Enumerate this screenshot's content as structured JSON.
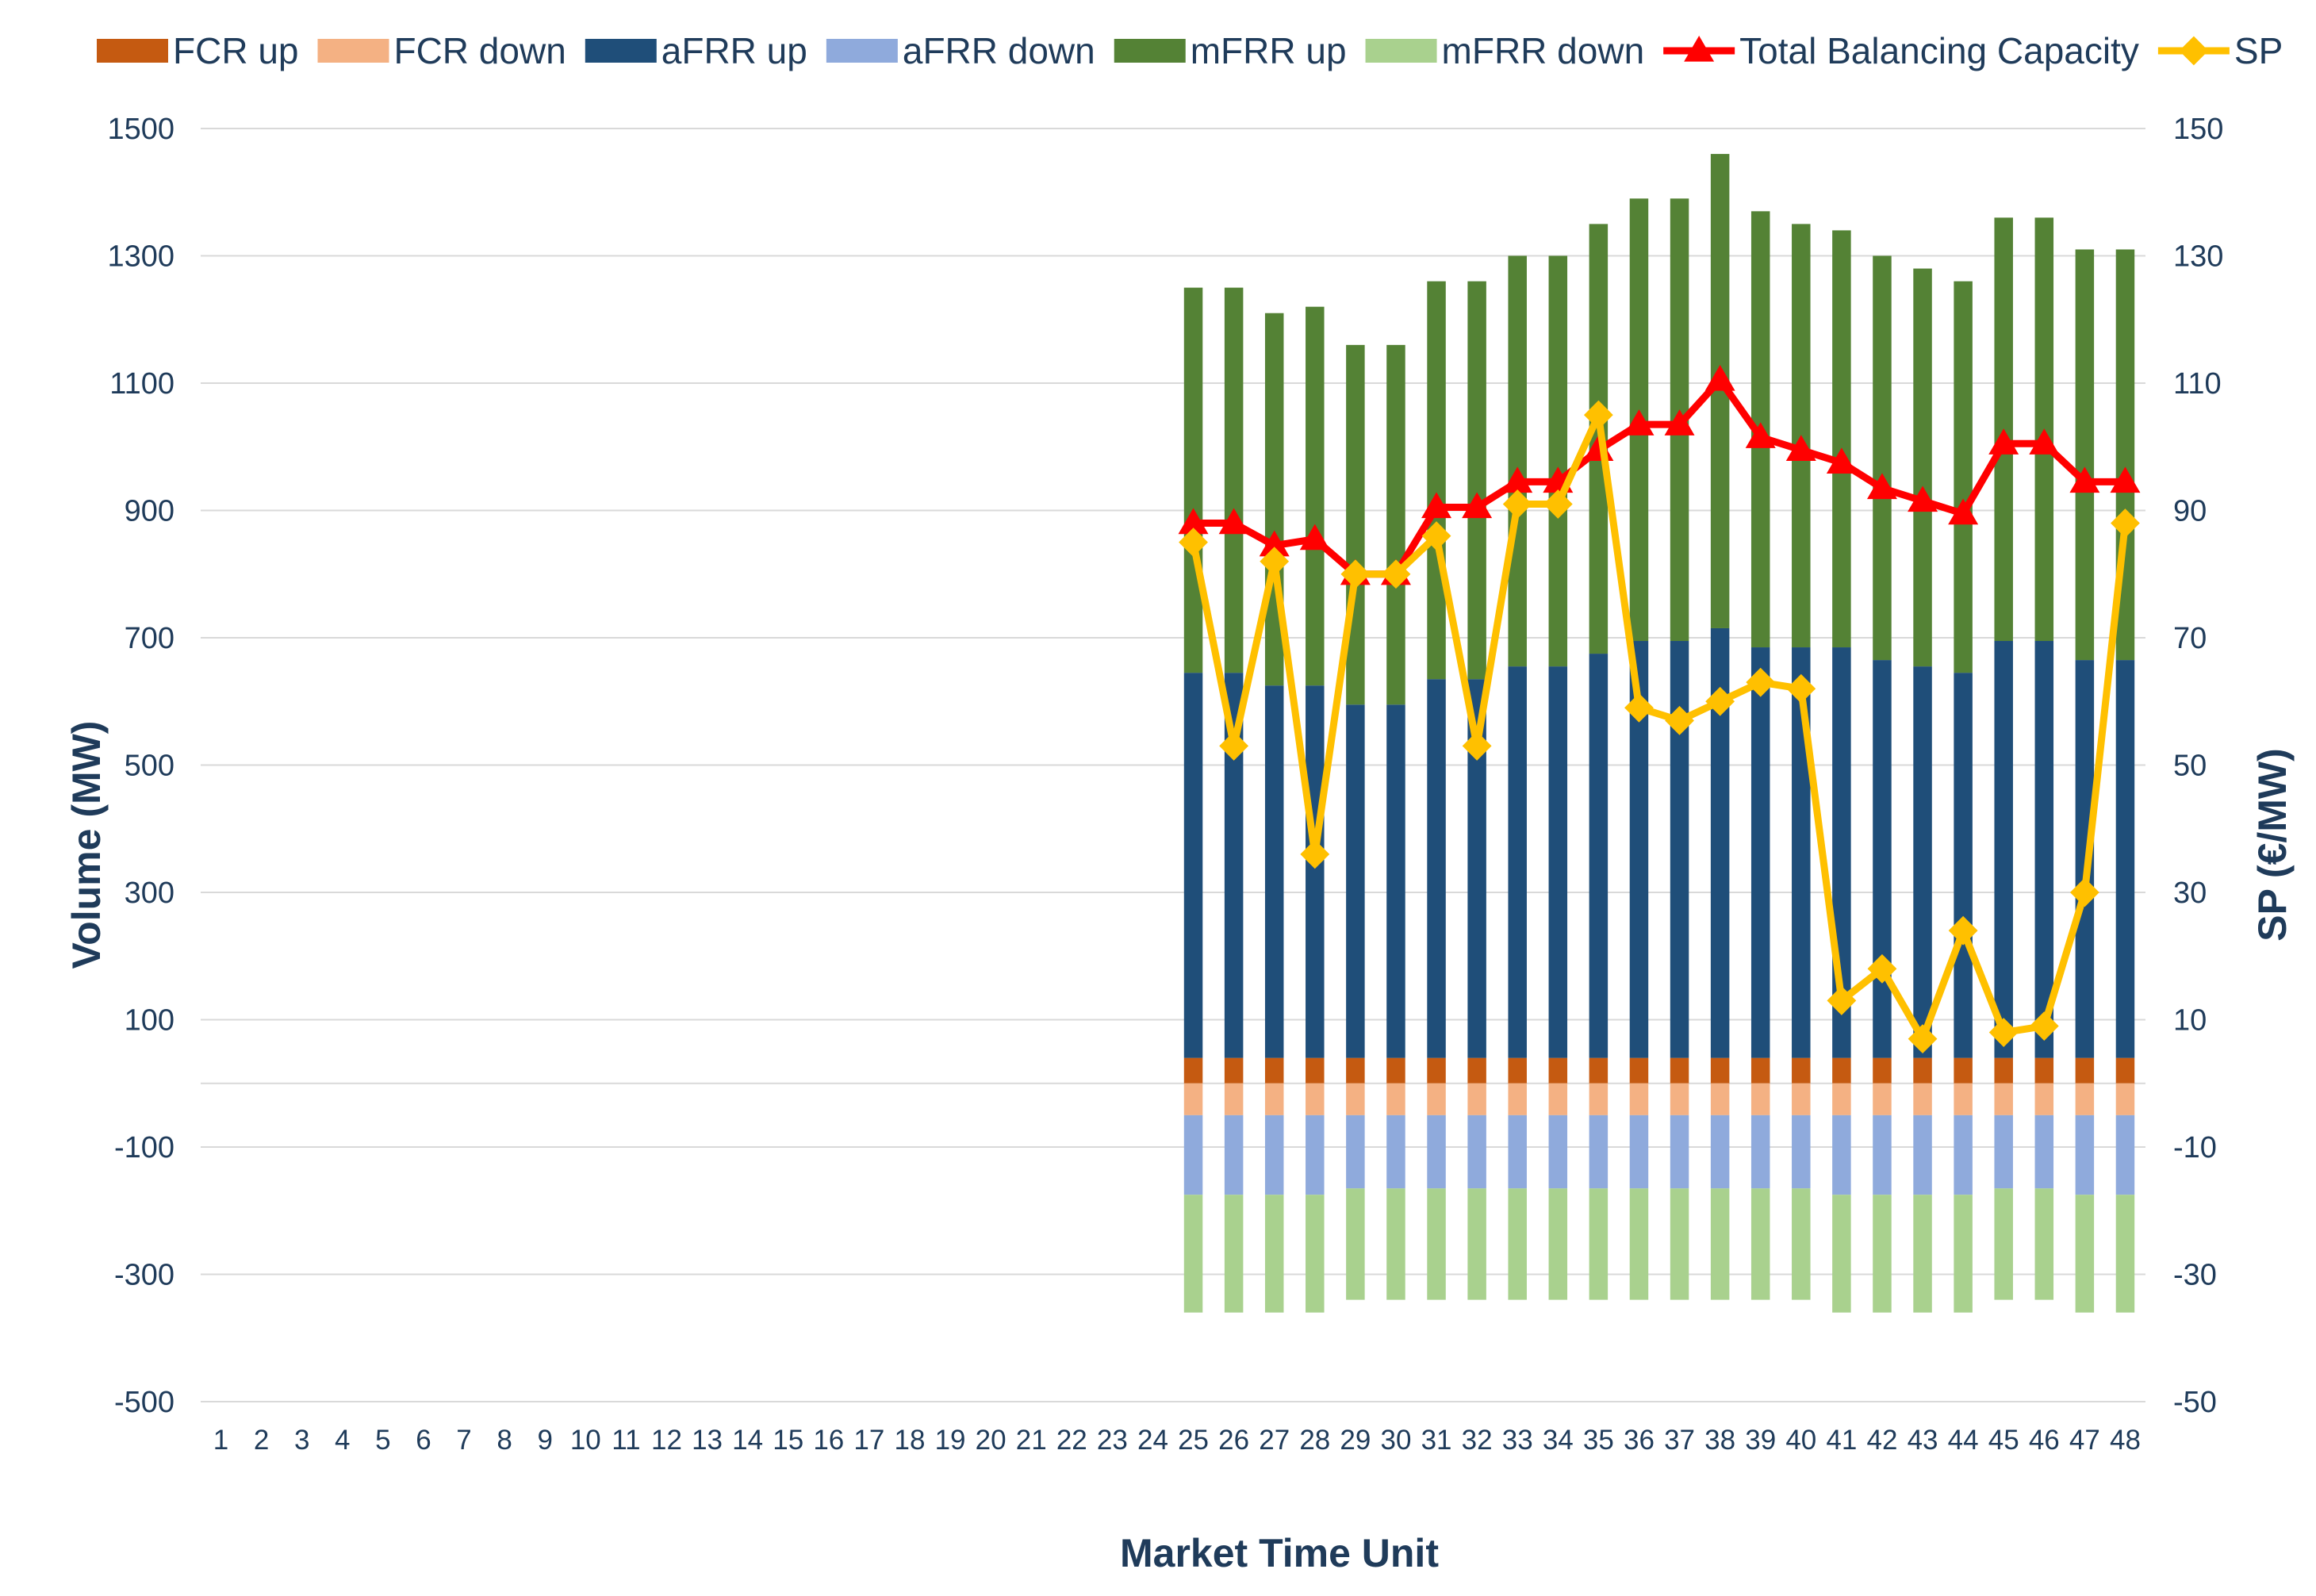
{
  "chart_data": {
    "type": "bar",
    "subtype": "stacked-bar-with-lines",
    "title": "",
    "xlabel": "Market Time Unit",
    "ylabel": "Volume (MW)",
    "y2label": "SP (€/MW)",
    "ylim": [
      -500,
      1500
    ],
    "y2lim": [
      -50,
      150
    ],
    "yticks": [
      1500,
      1300,
      1100,
      900,
      700,
      500,
      300,
      100,
      -100,
      -300,
      -500
    ],
    "y2ticks": [
      150,
      130,
      110,
      90,
      70,
      50,
      30,
      10,
      -10,
      -30,
      -50
    ],
    "categories": [
      "1",
      "2",
      "3",
      "4",
      "5",
      "6",
      "7",
      "8",
      "9",
      "10",
      "11",
      "12",
      "13",
      "14",
      "15",
      "16",
      "17",
      "18",
      "19",
      "20",
      "21",
      "22",
      "23",
      "24",
      "25",
      "26",
      "27",
      "28",
      "29",
      "30",
      "31",
      "32",
      "33",
      "34",
      "35",
      "36",
      "37",
      "38",
      "39",
      "40",
      "41",
      "42",
      "43",
      "44",
      "45",
      "46",
      "47",
      "48"
    ],
    "grid": true,
    "legend_position": "top",
    "series": [
      {
        "name": "FCR up",
        "kind": "bar",
        "color": "#c55a11",
        "values": [
          null,
          null,
          null,
          null,
          null,
          null,
          null,
          null,
          null,
          null,
          null,
          null,
          null,
          null,
          null,
          null,
          null,
          null,
          null,
          null,
          null,
          null,
          null,
          null,
          40,
          40,
          40,
          40,
          40,
          40,
          40,
          40,
          40,
          40,
          40,
          40,
          40,
          40,
          40,
          40,
          40,
          40,
          40,
          40,
          40,
          40,
          40,
          40
        ]
      },
      {
        "name": "FCR down",
        "kind": "bar",
        "color": "#f4b183",
        "values": [
          null,
          null,
          null,
          null,
          null,
          null,
          null,
          null,
          null,
          null,
          null,
          null,
          null,
          null,
          null,
          null,
          null,
          null,
          null,
          null,
          null,
          null,
          null,
          null,
          -50,
          -50,
          -50,
          -50,
          -50,
          -50,
          -50,
          -50,
          -50,
          -50,
          -50,
          -50,
          -50,
          -50,
          -50,
          -50,
          -50,
          -50,
          -50,
          -50,
          -50,
          -50,
          -50,
          -50
        ]
      },
      {
        "name": "aFRR up",
        "kind": "bar",
        "color": "#1f4e79",
        "values": [
          null,
          null,
          null,
          null,
          null,
          null,
          null,
          null,
          null,
          null,
          null,
          null,
          null,
          null,
          null,
          null,
          null,
          null,
          null,
          null,
          null,
          null,
          null,
          null,
          605,
          605,
          585,
          585,
          555,
          555,
          595,
          595,
          615,
          615,
          635,
          655,
          655,
          675,
          645,
          645,
          645,
          625,
          615,
          605,
          655,
          655,
          625,
          625
        ]
      },
      {
        "name": "aFRR down",
        "kind": "bar",
        "color": "#8faadc",
        "values": [
          null,
          null,
          null,
          null,
          null,
          null,
          null,
          null,
          null,
          null,
          null,
          null,
          null,
          null,
          null,
          null,
          null,
          null,
          null,
          null,
          null,
          null,
          null,
          null,
          -125,
          -125,
          -125,
          -125,
          -115,
          -115,
          -115,
          -115,
          -115,
          -115,
          -115,
          -115,
          -115,
          -115,
          -115,
          -115,
          -125,
          -125,
          -125,
          -125,
          -115,
          -115,
          -125,
          -125
        ]
      },
      {
        "name": "mFRR up",
        "kind": "bar",
        "color": "#548235",
        "values": [
          null,
          null,
          null,
          null,
          null,
          null,
          null,
          null,
          null,
          null,
          null,
          null,
          null,
          null,
          null,
          null,
          null,
          null,
          null,
          null,
          null,
          null,
          null,
          null,
          605,
          605,
          585,
          595,
          565,
          565,
          625,
          625,
          645,
          645,
          675,
          695,
          695,
          745,
          685,
          665,
          655,
          635,
          625,
          615,
          665,
          665,
          645,
          645
        ]
      },
      {
        "name": "mFRR down",
        "kind": "bar",
        "color": "#a9d18e",
        "values": [
          null,
          null,
          null,
          null,
          null,
          null,
          null,
          null,
          null,
          null,
          null,
          null,
          null,
          null,
          null,
          null,
          null,
          null,
          null,
          null,
          null,
          null,
          null,
          null,
          -185,
          -185,
          -185,
          -185,
          -175,
          -175,
          -175,
          -175,
          -175,
          -175,
          -175,
          -175,
          -175,
          -175,
          -175,
          -175,
          -185,
          -185,
          -185,
          -185,
          -175,
          -175,
          -185,
          -185
        ]
      },
      {
        "name": "Total Balancing Capacity",
        "kind": "line",
        "marker": "triangle",
        "axis": "left",
        "color": "#ff0000",
        "values": [
          null,
          null,
          null,
          null,
          null,
          null,
          null,
          null,
          null,
          null,
          null,
          null,
          null,
          null,
          null,
          null,
          null,
          null,
          null,
          null,
          null,
          null,
          null,
          null,
          880,
          880,
          845,
          855,
          800,
          800,
          905,
          905,
          945,
          945,
          995,
          1035,
          1035,
          1105,
          1015,
          995,
          975,
          935,
          915,
          895,
          1005,
          1005,
          945,
          945
        ]
      },
      {
        "name": "SP",
        "kind": "line",
        "marker": "diamond",
        "axis": "right",
        "color": "#ffc000",
        "values": [
          null,
          null,
          null,
          null,
          null,
          null,
          null,
          null,
          null,
          null,
          null,
          null,
          null,
          null,
          null,
          null,
          null,
          null,
          null,
          null,
          null,
          null,
          null,
          null,
          85,
          53,
          82,
          36,
          80,
          80,
          86,
          53,
          91,
          91,
          105,
          59,
          57,
          60,
          63,
          62,
          13,
          18,
          7,
          24,
          8,
          9,
          30,
          88
        ]
      }
    ]
  },
  "legend": {
    "items": [
      {
        "label": "FCR up",
        "color": "#c55a11",
        "symbol": "box"
      },
      {
        "label": "FCR down",
        "color": "#f4b183",
        "symbol": "box"
      },
      {
        "label": "aFRR up",
        "color": "#1f4e79",
        "symbol": "box"
      },
      {
        "label": "aFRR down",
        "color": "#8faadc",
        "symbol": "box"
      },
      {
        "label": "mFRR up",
        "color": "#548235",
        "symbol": "box"
      },
      {
        "label": "mFRR down",
        "color": "#a9d18e",
        "symbol": "box"
      },
      {
        "label": "Total Balancing Capacity",
        "color": "#ff0000",
        "symbol": "line-triangle"
      },
      {
        "label": "SP",
        "color": "#ffc000",
        "symbol": "line-diamond"
      }
    ]
  }
}
